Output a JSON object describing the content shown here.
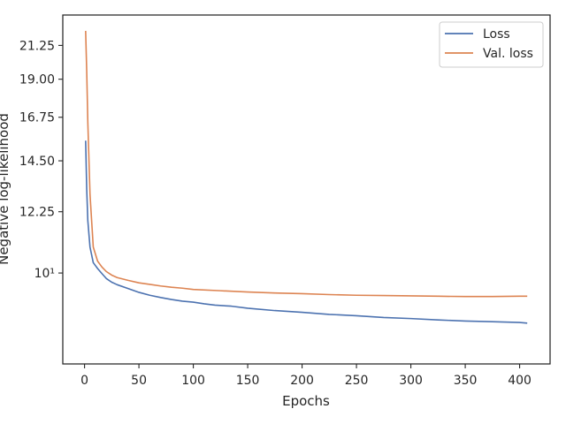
{
  "chart_data": {
    "type": "line",
    "title": "",
    "xlabel": "Epochs",
    "ylabel": "Negative log-likelihood",
    "xlim": [
      -20,
      428
    ],
    "ylim": [
      7.4,
      23.5
    ],
    "y_scale": "log",
    "x_ticks": [
      0,
      50,
      100,
      150,
      200,
      250,
      300,
      350,
      400
    ],
    "y_ticks": [
      {
        "value": 10,
        "label": "10¹"
      },
      {
        "value": 12.25,
        "label": "12.25"
      },
      {
        "value": 14.5,
        "label": "14.50"
      },
      {
        "value": 16.75,
        "label": "16.75"
      },
      {
        "value": 19.0,
        "label": "19.00"
      },
      {
        "value": 21.25,
        "label": "21.25"
      }
    ],
    "legend_position": "top-right",
    "grid": false,
    "series": [
      {
        "name": "Loss",
        "color": "#4c72b0",
        "points": [
          [
            1,
            15.5
          ],
          [
            2,
            13.2
          ],
          [
            3,
            11.9
          ],
          [
            5,
            10.9
          ],
          [
            8,
            10.35
          ],
          [
            12,
            10.15
          ],
          [
            16,
            9.98
          ],
          [
            20,
            9.82
          ],
          [
            25,
            9.7
          ],
          [
            30,
            9.62
          ],
          [
            40,
            9.5
          ],
          [
            50,
            9.38
          ],
          [
            60,
            9.29
          ],
          [
            70,
            9.22
          ],
          [
            80,
            9.16
          ],
          [
            90,
            9.11
          ],
          [
            100,
            9.08
          ],
          [
            110,
            9.03
          ],
          [
            120,
            8.99
          ],
          [
            135,
            8.96
          ],
          [
            150,
            8.9
          ],
          [
            175,
            8.83
          ],
          [
            200,
            8.78
          ],
          [
            225,
            8.72
          ],
          [
            250,
            8.68
          ],
          [
            275,
            8.63
          ],
          [
            300,
            8.6
          ],
          [
            325,
            8.56
          ],
          [
            350,
            8.53
          ],
          [
            375,
            8.51
          ],
          [
            400,
            8.49
          ],
          [
            407,
            8.47
          ]
        ]
      },
      {
        "name": "Val. loss",
        "color": "#dd8452",
        "points": [
          [
            1,
            22.3
          ],
          [
            2,
            19.5
          ],
          [
            3,
            16.5
          ],
          [
            5,
            13.0
          ],
          [
            8,
            10.9
          ],
          [
            12,
            10.4
          ],
          [
            16,
            10.2
          ],
          [
            20,
            10.05
          ],
          [
            25,
            9.93
          ],
          [
            30,
            9.85
          ],
          [
            40,
            9.76
          ],
          [
            50,
            9.68
          ],
          [
            60,
            9.63
          ],
          [
            70,
            9.58
          ],
          [
            80,
            9.54
          ],
          [
            90,
            9.51
          ],
          [
            100,
            9.47
          ],
          [
            125,
            9.43
          ],
          [
            150,
            9.39
          ],
          [
            175,
            9.36
          ],
          [
            200,
            9.34
          ],
          [
            225,
            9.31
          ],
          [
            250,
            9.29
          ],
          [
            275,
            9.28
          ],
          [
            300,
            9.27
          ],
          [
            325,
            9.26
          ],
          [
            350,
            9.25
          ],
          [
            375,
            9.25
          ],
          [
            400,
            9.26
          ],
          [
            407,
            9.26
          ]
        ]
      }
    ]
  }
}
